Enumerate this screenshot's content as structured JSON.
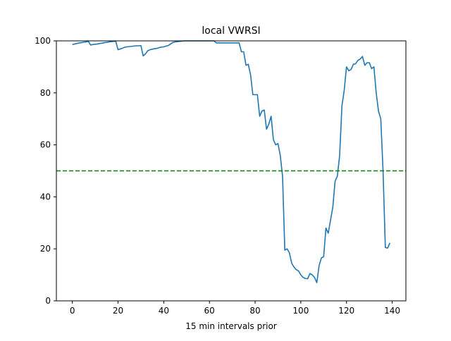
{
  "chart_data": {
    "type": "line",
    "title": "local VWRSI",
    "xlabel": "15 min intervals prior",
    "ylabel": "",
    "xlim": [
      -7,
      146
    ],
    "ylim": [
      0,
      100
    ],
    "xticks": [
      0,
      20,
      40,
      60,
      80,
      100,
      120,
      140
    ],
    "yticks": [
      0,
      20,
      40,
      60,
      80,
      100
    ],
    "grid": false,
    "series": [
      {
        "name": "VWRSI",
        "color": "#1f77b4",
        "values": [
          98.6,
          98.8,
          99,
          99.2,
          99.3,
          99.5,
          99.6,
          99.8,
          98.4,
          98.6,
          98.7,
          98.8,
          99,
          99.1,
          99.3,
          99.4,
          99.6,
          99.7,
          99.8,
          99.8,
          96.6,
          96.9,
          97.2,
          97.6,
          97.7,
          97.8,
          97.9,
          98,
          98.1,
          98.1,
          98.2,
          94.2,
          95,
          96.2,
          96.6,
          96.8,
          97,
          97.1,
          97.4,
          97.6,
          97.7,
          98,
          98.2,
          98.8,
          99.4,
          99.6,
          99.7,
          99.8,
          99.9,
          100,
          100,
          100,
          100,
          100,
          100,
          100,
          100,
          100,
          100,
          100,
          100,
          100,
          100,
          99.2,
          99.2,
          99.2,
          99.2,
          99.2,
          99.2,
          99.2,
          99.2,
          99.2,
          99.2,
          99.2,
          95.8,
          95.8,
          90.6,
          91,
          87,
          79.3,
          79.3,
          79.3,
          71,
          73,
          73.4,
          66,
          68,
          71,
          62,
          60,
          60.5,
          56,
          48,
          19.5,
          20,
          18.5,
          14.5,
          13,
          12,
          11.5,
          10,
          9,
          8.6,
          8.5,
          10.5,
          10,
          9,
          7,
          13.5,
          16.5,
          17,
          28,
          26,
          31,
          36,
          46,
          48,
          56,
          75,
          81,
          90,
          88.5,
          89,
          91,
          91.2,
          92.5,
          93,
          94,
          90.6,
          91.6,
          91.6,
          89.3,
          90,
          80,
          73,
          70,
          50,
          20.5,
          20.3,
          22.3
        ]
      }
    ],
    "reference_lines": [
      {
        "orientation": "horizontal",
        "y": 50,
        "style": "dashed",
        "color": "#008000"
      }
    ]
  }
}
